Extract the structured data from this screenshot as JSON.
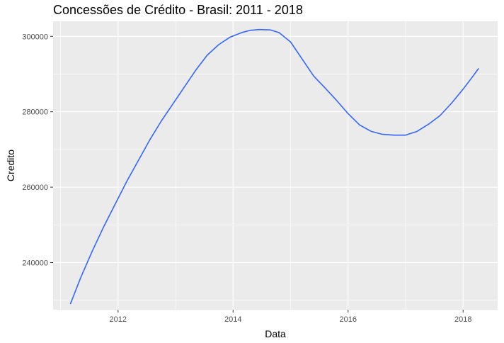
{
  "chart_data": {
    "type": "line",
    "title": "Concessões de Crédito - Brasil: 2011 - 2018",
    "xlabel": "Data",
    "ylabel": "Credito",
    "xlim": [
      2010.87,
      2018.6
    ],
    "ylim": [
      227500,
      304000
    ],
    "x_ticks": [
      2012,
      2014,
      2016,
      2018
    ],
    "x_tick_labels": [
      "2012",
      "2014",
      "2016",
      "2018"
    ],
    "y_ticks": [
      240000,
      260000,
      280000,
      300000
    ],
    "y_tick_labels": [
      "240000",
      "260000",
      "280000",
      "300000"
    ],
    "grid": true,
    "background": "#EBEBEB",
    "line_color": "#3366FF",
    "series": [
      {
        "x": [
          2011.17,
          2011.35,
          2011.55,
          2011.75,
          2011.95,
          2012.15,
          2012.35,
          2012.55,
          2012.75,
          2012.95,
          2013.15,
          2013.35,
          2013.55,
          2013.75,
          2013.95,
          2014.15,
          2014.3,
          2014.45,
          2014.65,
          2014.8,
          2015.0,
          2015.2,
          2015.4,
          2015.6,
          2015.8,
          2016.0,
          2016.2,
          2016.4,
          2016.6,
          2016.8,
          2017.0,
          2017.2,
          2017.4,
          2017.6,
          2017.8,
          2018.0,
          2018.15,
          2018.27
        ],
        "y": [
          229000,
          236000,
          243000,
          249500,
          255500,
          261500,
          267000,
          272500,
          277500,
          282000,
          286500,
          291000,
          295000,
          297800,
          299800,
          301000,
          301600,
          301800,
          301700,
          301000,
          298500,
          294000,
          289500,
          286300,
          283000,
          279500,
          276500,
          274800,
          274000,
          273800,
          273800,
          274800,
          276700,
          279000,
          282300,
          286000,
          289000,
          291500
        ]
      }
    ]
  }
}
